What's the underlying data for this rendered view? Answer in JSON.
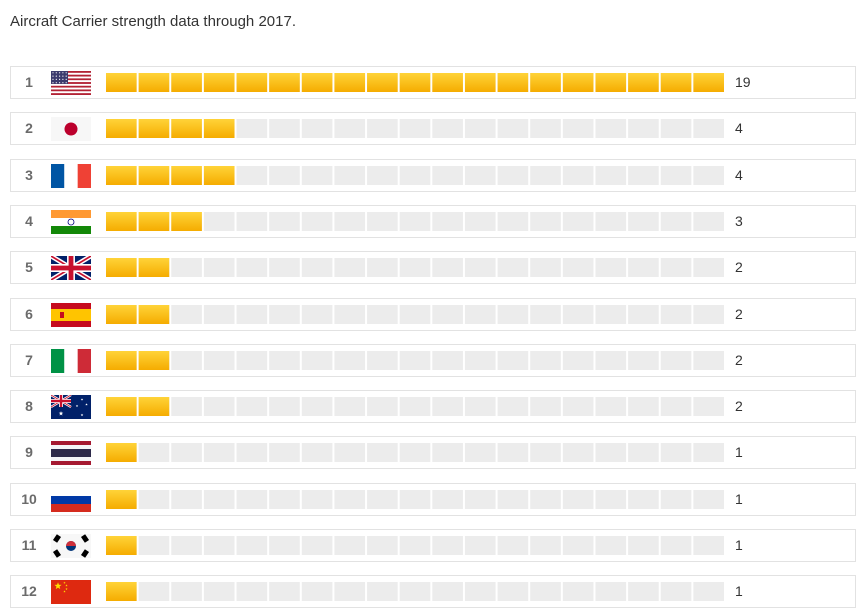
{
  "caption": "Aircraft Carrier strength data through 2017.",
  "chart_data": {
    "type": "bar",
    "orientation": "horizontal",
    "title": "Aircraft Carrier strength data through 2017.",
    "categories": [
      "1",
      "2",
      "3",
      "4",
      "5",
      "6",
      "7",
      "8",
      "9",
      "10",
      "11",
      "12"
    ],
    "values": [
      19,
      4,
      4,
      3,
      2,
      2,
      2,
      2,
      1,
      1,
      1,
      1
    ],
    "flag_icons": [
      "usa-flag-icon",
      "japan-flag-icon",
      "france-flag-icon",
      "india-flag-icon",
      "uk-flag-icon",
      "spain-flag-icon",
      "italy-flag-icon",
      "australia-flag-icon",
      "thailand-flag-icon",
      "russia-flag-icon",
      "south-korea-flag-icon",
      "china-flag-icon"
    ],
    "xlim": [
      0,
      19
    ],
    "grid": false,
    "legend": "none",
    "colors": {
      "filled": "#f5ac00",
      "filled_light": "#ffd338",
      "empty": "#ececec"
    }
  }
}
